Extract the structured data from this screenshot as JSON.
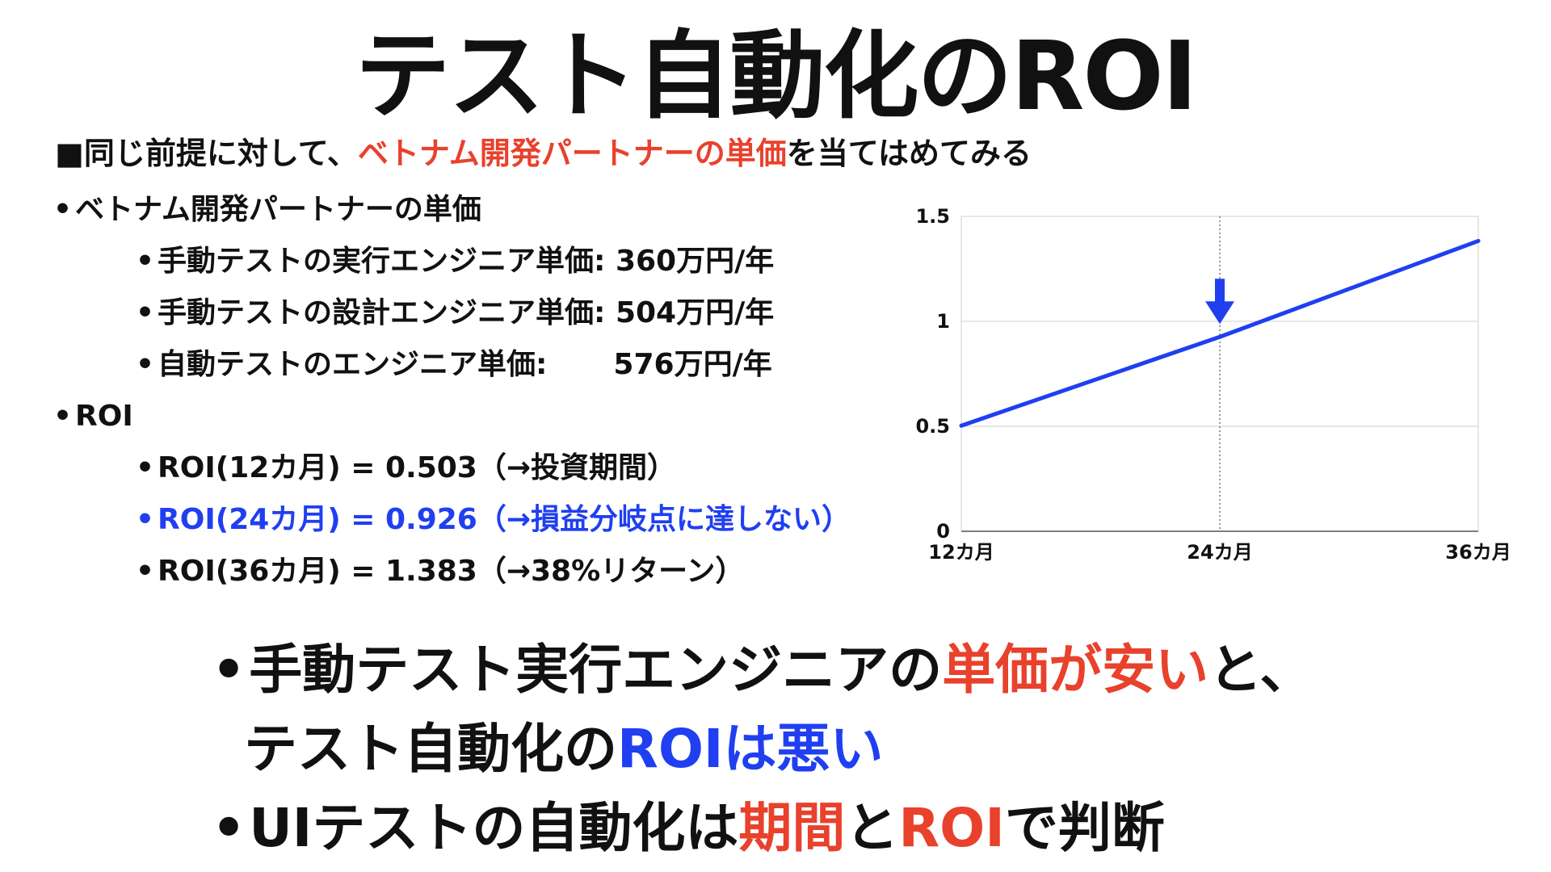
{
  "title": "テスト自動化のROI",
  "subtitle": {
    "prefix": "■同じ前提に対して、",
    "highlight": "ベトナム開発パートナーの単価",
    "suffix": "を当てはめてみる"
  },
  "price_section": {
    "heading": "ベトナム開発パートナーの単価",
    "items": [
      {
        "label": "手動テストの実行エンジニア単価: ",
        "value": "360万円/年"
      },
      {
        "label": "手動テストの設計エンジニア単価: ",
        "value": "504万円/年"
      },
      {
        "label": "自動テストのエンジニア単価:",
        "value": "576万円/年"
      }
    ]
  },
  "roi_section": {
    "heading": "ROI",
    "items": [
      {
        "text": "ROI(12カ月) = 0.503（→投資期間）"
      },
      {
        "text": "ROI(24カ月) = 0.926（→損益分岐点に達しない）"
      },
      {
        "text": "ROI(36カ月) = 1.383（→38%リターン）"
      }
    ]
  },
  "conclusions": {
    "c1_line1_a": "手動テスト実行エンジニアの",
    "c1_line1_b": "単価が安い",
    "c1_line1_c": "と、",
    "c1_line2_a": "テスト自動化の",
    "c1_line2_b": "ROIは悪い",
    "c2_a": "UIテストの自動化は",
    "c2_b": "期間",
    "c2_c": "と",
    "c2_d": "ROI",
    "c2_e": "で判断"
  },
  "colors": {
    "accent_red": "#e8412c",
    "accent_blue": "#1f3ff0",
    "text": "#111111"
  },
  "chart_data": {
    "type": "line",
    "x": [
      "12カ月",
      "24カ月",
      "36カ月"
    ],
    "y_ticks": [
      "0",
      "0.5",
      "1",
      "1.5"
    ],
    "ylim": [
      0,
      1.5
    ],
    "series": [
      {
        "values": [
          0.503,
          0.926,
          1.383
        ]
      }
    ],
    "grid": true,
    "annotation": {
      "type": "down-arrow",
      "at": "24カ月"
    }
  }
}
